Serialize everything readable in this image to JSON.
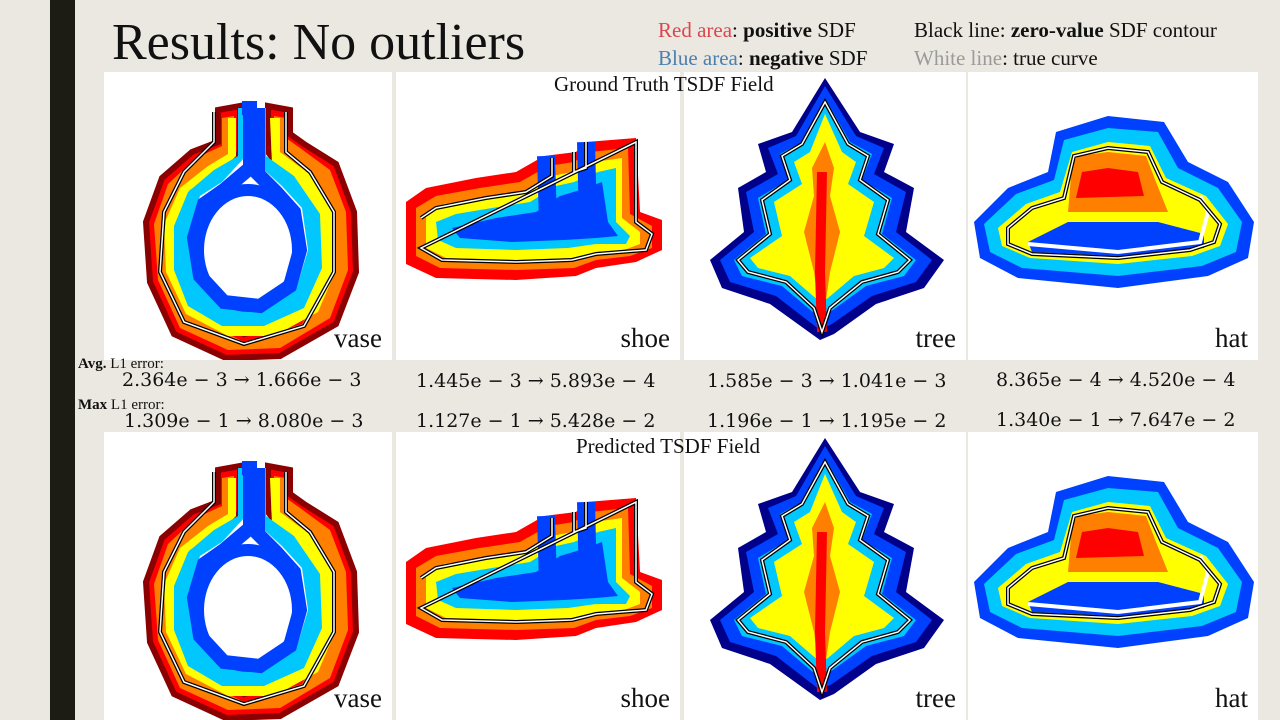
{
  "slide": {
    "title": "Results: No outliers",
    "legend": {
      "red_prefix": "Red area",
      "red_bold": "positive",
      "red_suffix": " SDF",
      "blue_prefix": "Blue area",
      "blue_bold": "negative",
      "blue_suffix": " SDF",
      "black_prefix": "Black line: ",
      "black_bold": "zero-value",
      "black_suffix": " SDF contour",
      "white_prefix": "White line",
      "white_suffix": ": true curve",
      "red_color": "#d9464e",
      "blue_color": "#4a7fb0",
      "gray_color": "#9a9a9a"
    },
    "ground_truth_title": "Ground Truth TSDF Field",
    "predicted_title": "Predicted TSDF Field",
    "avg_label_bold": "Avg.",
    "avg_label_rest": " L1 error:",
    "max_label_bold": "Max",
    "max_label_rest": " L1 error:",
    "shapes": [
      {
        "name": "vase",
        "avg_error": "2.364e − 3  →  1.666e − 3",
        "max_error": "1.309e − 1  →  8.080e − 3"
      },
      {
        "name": "shoe",
        "avg_error": "1.445e − 3  →  5.893e − 4",
        "max_error": "1.127e − 1  →  5.428e − 2"
      },
      {
        "name": "tree",
        "avg_error": "1.585e − 3  →  1.041e − 3",
        "max_error": "1.196e − 1  →  1.195e − 2"
      },
      {
        "name": "hat",
        "avg_error": "8.365e − 4  →  4.520e − 4",
        "max_error": "1.340e − 1  →  7.647e − 2"
      }
    ],
    "colormap": [
      "#8b0000",
      "#ff0000",
      "#ff8000",
      "#ffff00",
      "#00c8ff",
      "#0040ff",
      "#00008b"
    ]
  }
}
